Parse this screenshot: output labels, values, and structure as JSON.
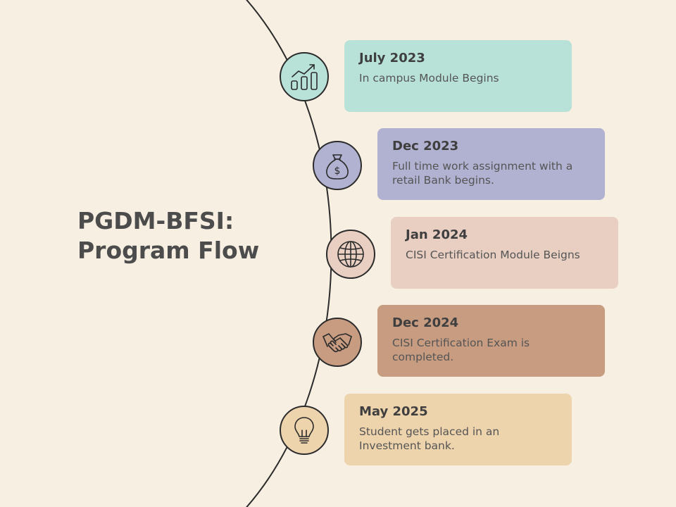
{
  "title": {
    "line1": "PGDM-BFSI:",
    "line2": "Program Flow"
  },
  "milestones": [
    {
      "date": "July 2023",
      "description": "In campus Module Begins",
      "icon": "growth-chart-icon",
      "node_color": "#b8e2d8",
      "card_color": "#b8e2d8"
    },
    {
      "date": "Dec 2023",
      "description": "Full time work assignment with a retail Bank begins.",
      "icon": "money-bag-icon",
      "node_color": "#b1b1d1",
      "card_color": "#b1b1d1"
    },
    {
      "date": "Jan 2024",
      "description": "CISI Certification Module Beigns",
      "icon": "globe-icon",
      "node_color": "#e8cfc2",
      "card_color": "#e8cfc2"
    },
    {
      "date": "Dec 2024",
      "description": "CISI Certification Exam is completed.",
      "icon": "handshake-icon",
      "node_color": "#c79c81",
      "card_color": "#c79c81"
    },
    {
      "date": "May 2025",
      "description": "Student gets placed in an Investment bank.",
      "icon": "lightbulb-icon",
      "node_color": "#eed4ad",
      "card_color": "#eed4ad"
    }
  ]
}
